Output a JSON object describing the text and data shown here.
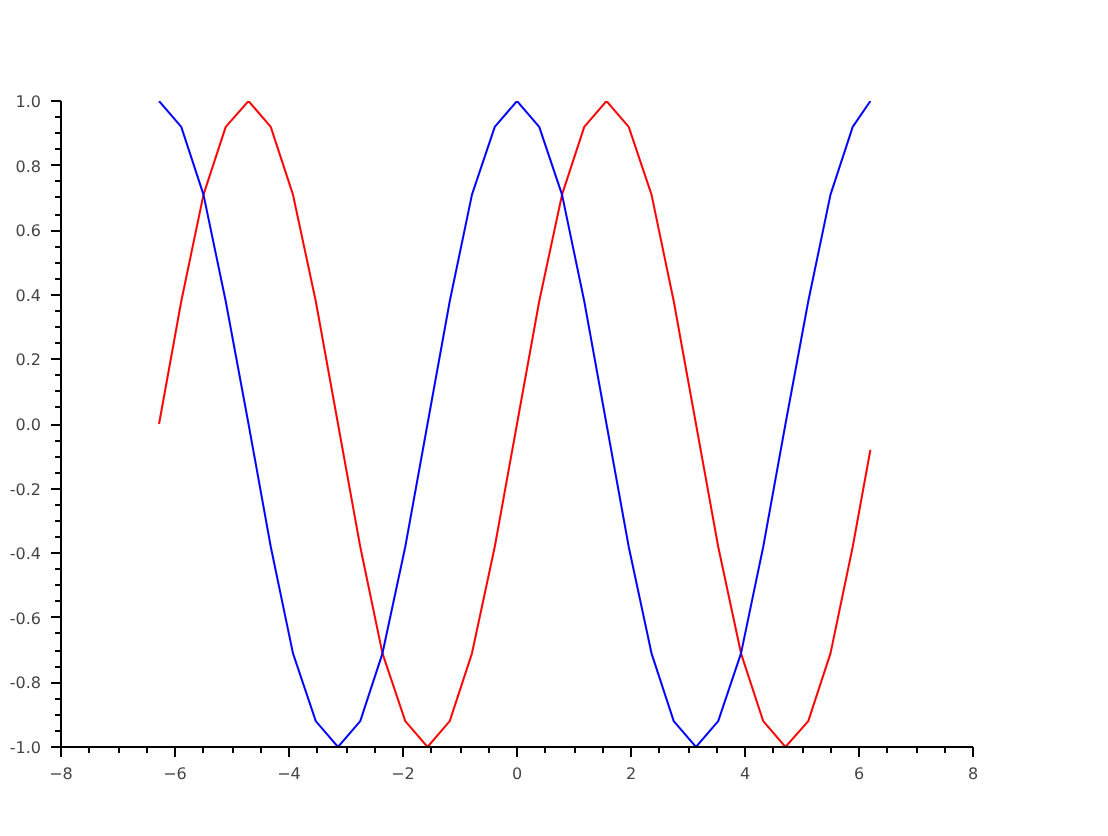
{
  "chart_data": {
    "type": "line",
    "x": [
      -6.28,
      -5.89,
      -5.5,
      -5.11,
      -4.71,
      -4.32,
      -3.93,
      -3.53,
      -3.14,
      -2.75,
      -2.36,
      -1.96,
      -1.57,
      -1.18,
      -0.79,
      -0.39,
      0,
      0.39,
      0.79,
      1.18,
      1.57,
      1.96,
      2.36,
      2.75,
      3.14,
      3.53,
      3.93,
      4.32,
      4.71,
      5.11,
      5.5,
      5.89,
      6.2
    ],
    "series": [
      {
        "color": "#ff0000",
        "values": [
          0,
          0.38,
          0.71,
          0.92,
          1,
          0.92,
          0.71,
          0.38,
          0,
          -0.38,
          -0.71,
          -0.92,
          -1,
          -0.92,
          -0.71,
          -0.38,
          0,
          0.38,
          0.71,
          0.92,
          1,
          0.92,
          0.71,
          0.38,
          0,
          -0.38,
          -0.71,
          -0.92,
          -1,
          -0.92,
          -0.71,
          -0.38,
          -0.08
        ]
      },
      {
        "color": "#0000ff",
        "values": [
          1,
          0.92,
          0.71,
          0.38,
          0,
          -0.38,
          -0.71,
          -0.92,
          -1,
          -0.92,
          -0.71,
          -0.38,
          0,
          0.38,
          0.71,
          0.92,
          1,
          0.92,
          0.71,
          0.38,
          0,
          -0.38,
          -0.71,
          -0.92,
          -1,
          -0.92,
          -0.71,
          -0.38,
          0,
          0.38,
          0.71,
          0.92,
          1
        ]
      }
    ],
    "xlim": [
      -8,
      8
    ],
    "xticks": [
      -8,
      -6,
      -4,
      -2,
      0,
      2,
      4,
      6,
      8
    ],
    "ylim": [
      -1,
      1
    ],
    "yticks": [
      {
        "value": -1,
        "label": "-1.0"
      },
      {
        "value": -0.8,
        "label": "-0.8"
      },
      {
        "value": -0.6,
        "label": "-0.6"
      },
      {
        "value": -0.4,
        "label": "-0.4"
      },
      {
        "value": -0.2,
        "label": "-0.2"
      },
      {
        "value": 0,
        "label": "0.0"
      },
      {
        "value": 0.2,
        "label": "0.2"
      },
      {
        "value": 0.4,
        "label": "0.4"
      },
      {
        "value": 0.6,
        "label": "0.6"
      },
      {
        "value": 0.8,
        "label": "0.8"
      },
      {
        "value": 1,
        "label": "1.0"
      }
    ]
  }
}
